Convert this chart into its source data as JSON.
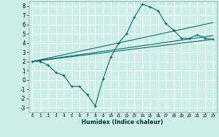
{
  "xlabel": "Humidex (Indice chaleur)",
  "bg_color": "#cceee8",
  "line_color": "#006666",
  "grid_color": "#ffffff",
  "xlim": [
    -0.5,
    23.5
  ],
  "ylim": [
    -3.5,
    8.5
  ],
  "xticks": [
    0,
    1,
    2,
    3,
    4,
    5,
    6,
    7,
    8,
    9,
    10,
    11,
    12,
    13,
    14,
    15,
    16,
    17,
    18,
    19,
    20,
    21,
    22,
    23
  ],
  "yticks": [
    -3,
    -2,
    -1,
    0,
    1,
    2,
    3,
    4,
    5,
    6,
    7,
    8
  ],
  "line1_x": [
    0,
    1,
    2,
    3,
    4,
    5,
    6,
    7,
    8,
    9,
    10,
    11,
    12,
    13,
    14,
    15,
    16,
    17,
    18,
    19,
    20,
    21,
    22,
    23
  ],
  "line1_y": [
    2.0,
    2.0,
    1.6,
    0.8,
    0.5,
    -0.7,
    -0.7,
    -1.6,
    -2.8,
    0.1,
    2.5,
    4.0,
    5.0,
    6.8,
    8.2,
    7.9,
    7.5,
    6.1,
    5.4,
    4.5,
    4.5,
    4.9,
    4.5,
    4.4
  ],
  "trend1_x": [
    0,
    23
  ],
  "trend1_y": [
    2.0,
    6.2
  ],
  "trend2_x": [
    0,
    23
  ],
  "trend2_y": [
    2.0,
    4.8
  ],
  "trend3_x": [
    0,
    23
  ],
  "trend3_y": [
    2.0,
    4.4
  ]
}
